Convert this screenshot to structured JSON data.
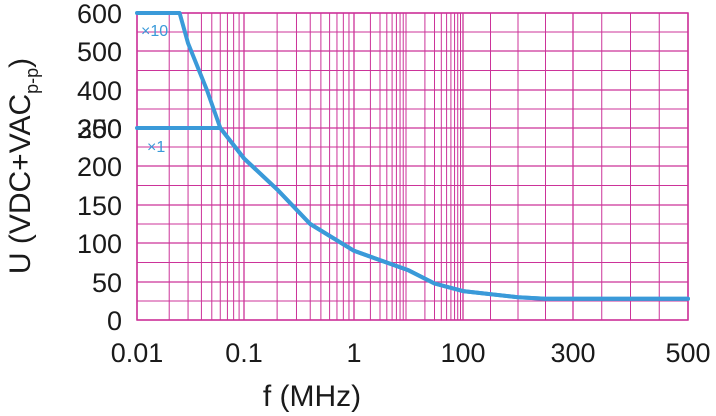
{
  "chart_data": {
    "type": "line",
    "xlabel": "f (MHz)",
    "ylabel_main": "U (VDC+VAC",
    "ylabel_sub": "p-p",
    "ylabel_close": ")",
    "x_tick_labels": [
      "0.01",
      "0.1",
      "1",
      "100",
      "300",
      "500"
    ],
    "y_tick_labels": [
      "0",
      "50",
      "100",
      "150",
      "200",
      "250",
      "300",
      "400",
      "500",
      "600"
    ],
    "series": [
      {
        "name": "×10",
        "points": [
          {
            "x": "0.01",
            "y": 600
          },
          {
            "x": "0.025",
            "y": 600
          },
          {
            "x": "0.03",
            "y": 520
          },
          {
            "x": "0.045",
            "y": 400
          },
          {
            "x": "0.06",
            "y": 300
          },
          {
            "x": "0.1",
            "y": 220
          },
          {
            "x": "0.2",
            "y": 170
          },
          {
            "x": "0.4",
            "y": 125
          },
          {
            "x": "1",
            "y": 90
          },
          {
            "x": "10",
            "y": 65
          },
          {
            "x": "30",
            "y": 48
          },
          {
            "x": "100",
            "y": 38
          },
          {
            "x": "200",
            "y": 30
          },
          {
            "x": "250",
            "y": 28
          },
          {
            "x": "500",
            "y": 28
          }
        ]
      },
      {
        "name": "×1",
        "points": [
          {
            "x": "0.01",
            "y": 300
          },
          {
            "x": "0.06",
            "y": 300
          },
          {
            "x": "0.1",
            "y": 220
          },
          {
            "x": "0.2",
            "y": 170
          },
          {
            "x": "0.4",
            "y": 125
          },
          {
            "x": "1",
            "y": 90
          },
          {
            "x": "10",
            "y": 65
          },
          {
            "x": "30",
            "y": 48
          },
          {
            "x": "100",
            "y": 38
          },
          {
            "x": "200",
            "y": 30
          },
          {
            "x": "250",
            "y": 28
          },
          {
            "x": "500",
            "y": 28
          }
        ]
      }
    ],
    "grid": true,
    "colors": {
      "grid": "#cc3399",
      "line": "#3a9ad9",
      "text": "#1a1a1a"
    }
  }
}
